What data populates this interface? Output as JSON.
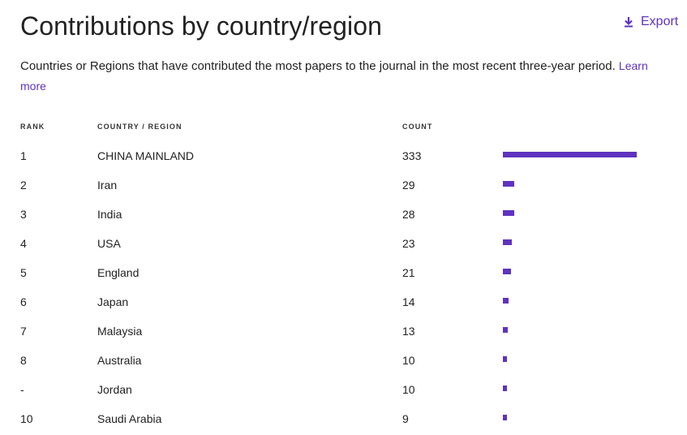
{
  "title": "Contributions by country/region",
  "export_label": "Export",
  "description": "Countries or Regions that have contributed the most papers to the journal in the most recent three-year period.",
  "learn_more": "Learn more",
  "table": {
    "columns": [
      "RANK",
      "COUNTRY / REGION",
      "COUNT"
    ],
    "rows": [
      {
        "rank": "1",
        "country": "CHINA MAINLAND",
        "count": 333
      },
      {
        "rank": "2",
        "country": "Iran",
        "count": 29
      },
      {
        "rank": "3",
        "country": "India",
        "count": 28
      },
      {
        "rank": "4",
        "country": "USA",
        "count": 23
      },
      {
        "rank": "5",
        "country": "England",
        "count": 21
      },
      {
        "rank": "6",
        "country": "Japan",
        "count": 14
      },
      {
        "rank": "7",
        "country": "Malaysia",
        "count": 13
      },
      {
        "rank": "8",
        "country": "Australia",
        "count": 10
      },
      {
        "rank": "-",
        "country": "Jordan",
        "count": 10
      },
      {
        "rank": "10",
        "country": "Saudi Arabia",
        "count": 9
      }
    ]
  },
  "colors": {
    "accent": "#5e33bf",
    "text": "#222222"
  }
}
